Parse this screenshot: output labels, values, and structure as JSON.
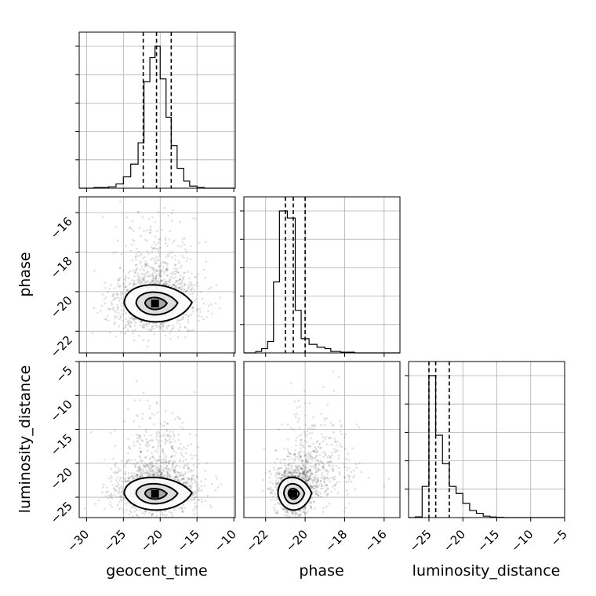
{
  "chart_data": {
    "type": "corner",
    "parameters": [
      {
        "name": "geocent_time",
        "label": "geocent_time",
        "range": [
          -31,
          -9.8
        ],
        "ticks": [
          -30,
          -25,
          -20,
          -15,
          -10
        ],
        "tick_labels": [
          "−30",
          "−25",
          "−20",
          "−15",
          "−10"
        ],
        "quantiles": [
          -22.3,
          -20.5,
          -18.5
        ],
        "median": -20.5,
        "histogram": {
          "bin_edges": [
            -31,
            -29,
            -27,
            -26,
            -25,
            -24,
            -23,
            -22.2,
            -21.4,
            -20.7,
            -20,
            -19.2,
            -18.5,
            -17.7,
            -16.8,
            -16,
            -15,
            -14,
            -13,
            -11,
            -9.8
          ],
          "heights": [
            0,
            0.005,
            0.01,
            0.03,
            0.08,
            0.17,
            0.32,
            0.75,
            0.92,
            1.0,
            0.77,
            0.5,
            0.3,
            0.14,
            0.05,
            0.015,
            0.005,
            0,
            0,
            0
          ]
        }
      },
      {
        "name": "phase",
        "label": "phase",
        "range": [
          -23.1,
          -15.2
        ],
        "ticks": [
          -22,
          -20,
          -18,
          -16
        ],
        "tick_labels": [
          "−22",
          "−20",
          "−18",
          "−16"
        ],
        "quantiles": [
          -21.0,
          -20.6,
          -20.0
        ],
        "median": -20.6,
        "histogram": {
          "bin_edges": [
            -23.1,
            -22.5,
            -22.2,
            -21.9,
            -21.6,
            -21.3,
            -20.9,
            -20.5,
            -20.2,
            -19.8,
            -19.4,
            -19,
            -18.7,
            -18.2,
            -17.5,
            -15.2
          ],
          "heights": [
            0,
            0.01,
            0.03,
            0.08,
            0.5,
            1.0,
            0.95,
            0.3,
            0.1,
            0.06,
            0.04,
            0.03,
            0.01,
            0.005,
            0
          ]
        }
      },
      {
        "name": "luminosity_distance",
        "label": "luminosity_distance",
        "range": [
          -28,
          -5
        ],
        "ticks": [
          -25,
          -20,
          -15,
          -10,
          -5
        ],
        "tick_labels": [
          "−25",
          "−20",
          "−15",
          "−10",
          "−5"
        ],
        "quantiles": [
          -25.0,
          -24.0,
          -22.0
        ],
        "median": -24.0,
        "histogram": {
          "bin_edges": [
            -28,
            -27,
            -26,
            -25,
            -24,
            -23,
            -22,
            -21,
            -20,
            -19,
            -18,
            -17,
            -16,
            -15,
            -14,
            -5
          ],
          "heights": [
            0,
            0.005,
            0.22,
            1.0,
            0.58,
            0.38,
            0.22,
            0.17,
            0.1,
            0.05,
            0.03,
            0.01,
            0.004,
            0.002,
            0
          ]
        }
      }
    ],
    "pair_panels": [
      {
        "x": "geocent_time",
        "y": "phase",
        "center": [
          -20.5,
          -20.6
        ],
        "spread": [
          2.7,
          0.7
        ],
        "tail": [
          0,
          0.9
        ],
        "peak": [
          -20.7,
          -20.6
        ]
      },
      {
        "x": "geocent_time",
        "y": "luminosity_distance",
        "center": [
          -20.5,
          -24.0
        ],
        "spread": [
          2.7,
          1.8
        ],
        "tail": [
          0,
          2.5
        ],
        "peak": [
          -20.7,
          -24.5
        ]
      },
      {
        "x": "phase",
        "y": "luminosity_distance",
        "center": [
          -20.6,
          -24.0
        ],
        "spread": [
          0.5,
          1.8
        ],
        "tail": [
          0.7,
          2.5
        ],
        "peak": [
          -20.6,
          -24.5
        ]
      }
    ],
    "contour_levels": [
      0.4,
      0.65,
      0.85
    ],
    "grid": true,
    "scatter_points_per_panel": 1400
  }
}
